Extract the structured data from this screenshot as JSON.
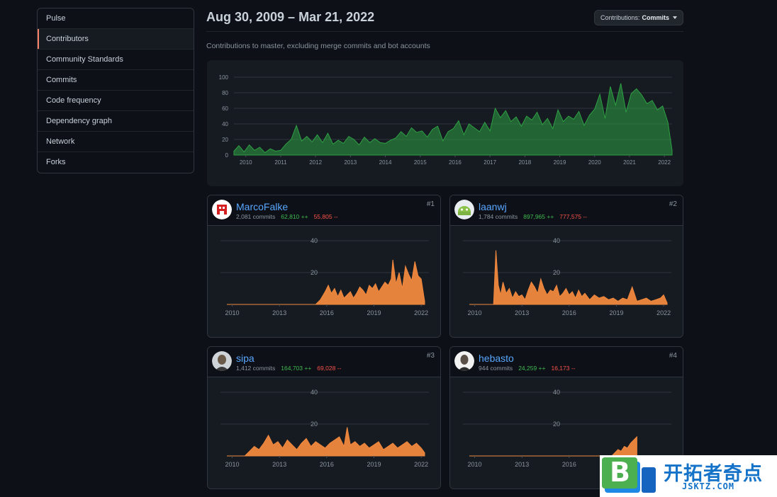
{
  "sidebar": {
    "items": [
      {
        "label": "Pulse",
        "selected": false
      },
      {
        "label": "Contributors",
        "selected": true
      },
      {
        "label": "Community Standards",
        "selected": false
      },
      {
        "label": "Commits",
        "selected": false
      },
      {
        "label": "Code frequency",
        "selected": false
      },
      {
        "label": "Dependency graph",
        "selected": false
      },
      {
        "label": "Network",
        "selected": false
      },
      {
        "label": "Forks",
        "selected": false
      }
    ]
  },
  "header": {
    "date_range": "Aug 30, 2009 – Mar 21, 2022",
    "contributions_prefix": "Contributions:",
    "contributions_value": "Commits",
    "subtitle": "Contributions to master, excluding merge commits and bot accounts"
  },
  "colors": {
    "main_series": "#2ea043",
    "user_series": "#f0883e",
    "link": "#58a6ff",
    "additions": "#3fb950",
    "deletions": "#f85149"
  },
  "chart_data": [
    {
      "type": "area",
      "name": "overall",
      "y_ticks": [
        0,
        20,
        40,
        60,
        80,
        100
      ],
      "x_ticks": [
        "2010",
        "2011",
        "2012",
        "2013",
        "2014",
        "2015",
        "2016",
        "2017",
        "2018",
        "2019",
        "2020",
        "2021",
        "2022"
      ],
      "ylim": [
        0,
        100
      ],
      "xlim": [
        2009.66,
        2022.22
      ],
      "series": [
        {
          "x": [
            2009.66,
            2009.8,
            2009.95,
            2010.1,
            2010.25,
            2010.4,
            2010.55,
            2010.7,
            2010.85,
            2011.0,
            2011.15,
            2011.3,
            2011.45,
            2011.6,
            2011.75,
            2011.9,
            2012.05,
            2012.2,
            2012.35,
            2012.5,
            2012.65,
            2012.8,
            2012.95,
            2013.1,
            2013.25,
            2013.4,
            2013.55,
            2013.7,
            2013.85,
            2014.0,
            2014.15,
            2014.3,
            2014.45,
            2014.6,
            2014.75,
            2014.9,
            2015.05,
            2015.2,
            2015.35,
            2015.5,
            2015.65,
            2015.8,
            2015.95,
            2016.1,
            2016.25,
            2016.4,
            2016.55,
            2016.7,
            2016.85,
            2017.0,
            2017.15,
            2017.3,
            2017.45,
            2017.6,
            2017.75,
            2017.9,
            2018.05,
            2018.2,
            2018.35,
            2018.5,
            2018.65,
            2018.8,
            2018.95,
            2019.1,
            2019.25,
            2019.4,
            2019.55,
            2019.7,
            2019.85,
            2020.0,
            2020.15,
            2020.3,
            2020.45,
            2020.6,
            2020.75,
            2020.9,
            2021.05,
            2021.2,
            2021.35,
            2021.5,
            2021.65,
            2021.8,
            2021.95,
            2022.1,
            2022.22
          ],
          "values": [
            5,
            12,
            4,
            13,
            6,
            10,
            3,
            8,
            5,
            6,
            14,
            20,
            38,
            18,
            24,
            17,
            26,
            16,
            28,
            14,
            19,
            15,
            24,
            20,
            13,
            23,
            16,
            21,
            16,
            15,
            19,
            22,
            30,
            24,
            35,
            29,
            31,
            23,
            33,
            37,
            18,
            30,
            34,
            44,
            26,
            40,
            35,
            30,
            42,
            31,
            60,
            48,
            57,
            43,
            49,
            37,
            50,
            45,
            55,
            39,
            47,
            34,
            58,
            43,
            50,
            46,
            56,
            38,
            51,
            59,
            78,
            47,
            88,
            64,
            92,
            55,
            79,
            85,
            77,
            66,
            70,
            58,
            63,
            42,
            6
          ]
        }
      ]
    },
    {
      "type": "area",
      "name": "MarcoFalke",
      "y_ticks": [
        20,
        40
      ],
      "ylim": [
        0,
        44
      ],
      "x_ticks": [
        "2010",
        "2013",
        "2016",
        "2019",
        "2022"
      ],
      "xlim": [
        2009.66,
        2022.22
      ],
      "series": [
        {
          "x": [
            2009.66,
            2015.3,
            2015.6,
            2015.9,
            2016.1,
            2016.3,
            2016.5,
            2016.7,
            2016.9,
            2017.1,
            2017.3,
            2017.5,
            2017.7,
            2017.9,
            2018.1,
            2018.3,
            2018.5,
            2018.7,
            2018.9,
            2019.1,
            2019.3,
            2019.5,
            2019.7,
            2019.9,
            2020.1,
            2020.2,
            2020.4,
            2020.6,
            2020.8,
            2021.0,
            2021.2,
            2021.4,
            2021.6,
            2021.8,
            2022.0,
            2022.22
          ],
          "values": [
            0,
            0,
            3,
            8,
            12,
            7,
            10,
            5,
            9,
            4,
            6,
            8,
            4,
            7,
            11,
            9,
            6,
            12,
            10,
            13,
            8,
            11,
            14,
            12,
            16,
            28,
            13,
            20,
            10,
            24,
            19,
            15,
            27,
            18,
            16,
            2
          ]
        }
      ]
    },
    {
      "type": "area",
      "name": "laanwj",
      "y_ticks": [
        20,
        40
      ],
      "ylim": [
        0,
        44
      ],
      "x_ticks": [
        "2010",
        "2013",
        "2016",
        "2019",
        "2022"
      ],
      "xlim": [
        2009.66,
        2022.22
      ],
      "series": [
        {
          "x": [
            2009.66,
            2011.2,
            2011.35,
            2011.5,
            2011.65,
            2011.8,
            2012.0,
            2012.2,
            2012.4,
            2012.6,
            2012.8,
            2013.0,
            2013.2,
            2013.4,
            2013.6,
            2013.8,
            2014.0,
            2014.2,
            2014.4,
            2014.6,
            2014.8,
            2015.0,
            2015.2,
            2015.4,
            2015.6,
            2015.8,
            2016.0,
            2016.2,
            2016.4,
            2016.6,
            2016.8,
            2017.0,
            2017.3,
            2017.6,
            2017.9,
            2018.2,
            2018.5,
            2018.8,
            2019.1,
            2019.4,
            2019.7,
            2020.0,
            2020.3,
            2020.6,
            2020.9,
            2021.2,
            2021.5,
            2021.8,
            2022.0,
            2022.22
          ],
          "values": [
            0,
            0,
            34,
            12,
            6,
            14,
            7,
            10,
            4,
            8,
            5,
            6,
            3,
            9,
            14,
            11,
            7,
            16,
            10,
            6,
            9,
            8,
            12,
            5,
            7,
            10,
            6,
            8,
            4,
            9,
            5,
            7,
            3,
            6,
            4,
            5,
            3,
            4,
            2,
            4,
            3,
            11,
            2,
            3,
            4,
            2,
            3,
            4,
            6,
            1
          ]
        }
      ]
    },
    {
      "type": "area",
      "name": "sipa",
      "y_ticks": [
        20,
        40
      ],
      "ylim": [
        0,
        44
      ],
      "x_ticks": [
        "2010",
        "2013",
        "2016",
        "2019",
        "2022"
      ],
      "xlim": [
        2009.66,
        2022.22
      ],
      "series": [
        {
          "x": [
            2009.66,
            2010.8,
            2011.1,
            2011.4,
            2011.7,
            2012.0,
            2012.3,
            2012.6,
            2012.9,
            2013.2,
            2013.5,
            2013.8,
            2014.1,
            2014.4,
            2014.7,
            2015.0,
            2015.3,
            2015.6,
            2015.9,
            2016.2,
            2016.5,
            2016.8,
            2017.1,
            2017.3,
            2017.5,
            2017.8,
            2018.1,
            2018.4,
            2018.7,
            2019.0,
            2019.3,
            2019.6,
            2019.9,
            2020.2,
            2020.5,
            2020.8,
            2021.1,
            2021.4,
            2021.7,
            2022.0,
            2022.22
          ],
          "values": [
            0,
            0,
            3,
            6,
            4,
            8,
            13,
            7,
            9,
            5,
            10,
            7,
            4,
            8,
            11,
            6,
            9,
            7,
            5,
            8,
            10,
            12,
            6,
            18,
            7,
            9,
            6,
            8,
            5,
            7,
            9,
            4,
            6,
            8,
            5,
            7,
            9,
            6,
            8,
            5,
            2
          ]
        }
      ]
    },
    {
      "type": "area",
      "name": "hebasto",
      "y_ticks": [
        20,
        40
      ],
      "ylim": [
        0,
        44
      ],
      "x_ticks": [
        "2010",
        "2013",
        "2016"
      ],
      "xlim": [
        2009.66,
        2022.22
      ],
      "series": [
        {
          "x": [
            2009.66,
            2018.7,
            2018.9,
            2019.1,
            2019.3,
            2019.5,
            2019.7,
            2019.9,
            2020.1,
            2020.3
          ],
          "values": [
            0,
            0,
            2,
            4,
            3,
            6,
            5,
            8,
            10,
            12
          ]
        }
      ]
    }
  ],
  "contributors": [
    {
      "username": "MarcoFalke",
      "commits": "2,081 commits",
      "additions": "62,810 ++",
      "deletions": "55,805 --",
      "rank": "#1",
      "avatar": "red-robot-avatar"
    },
    {
      "username": "laanwj",
      "commits": "1,784 commits",
      "additions": "897,965 ++",
      "deletions": "777,575 --",
      "rank": "#2",
      "avatar": "green-android-avatar"
    },
    {
      "username": "sipa",
      "commits": "1,412 commits",
      "additions": "164,703 ++",
      "deletions": "69,028 --",
      "rank": "#3",
      "avatar": "photo-avatar"
    },
    {
      "username": "hebasto",
      "commits": "944 commits",
      "additions": "24,259 ++",
      "deletions": "16,173 --",
      "rank": "#4",
      "avatar": "photo-avatar"
    }
  ],
  "watermark": {
    "title": "开拓者奇点",
    "url": "JSKTZ.COM",
    "logo_letter": "B"
  }
}
